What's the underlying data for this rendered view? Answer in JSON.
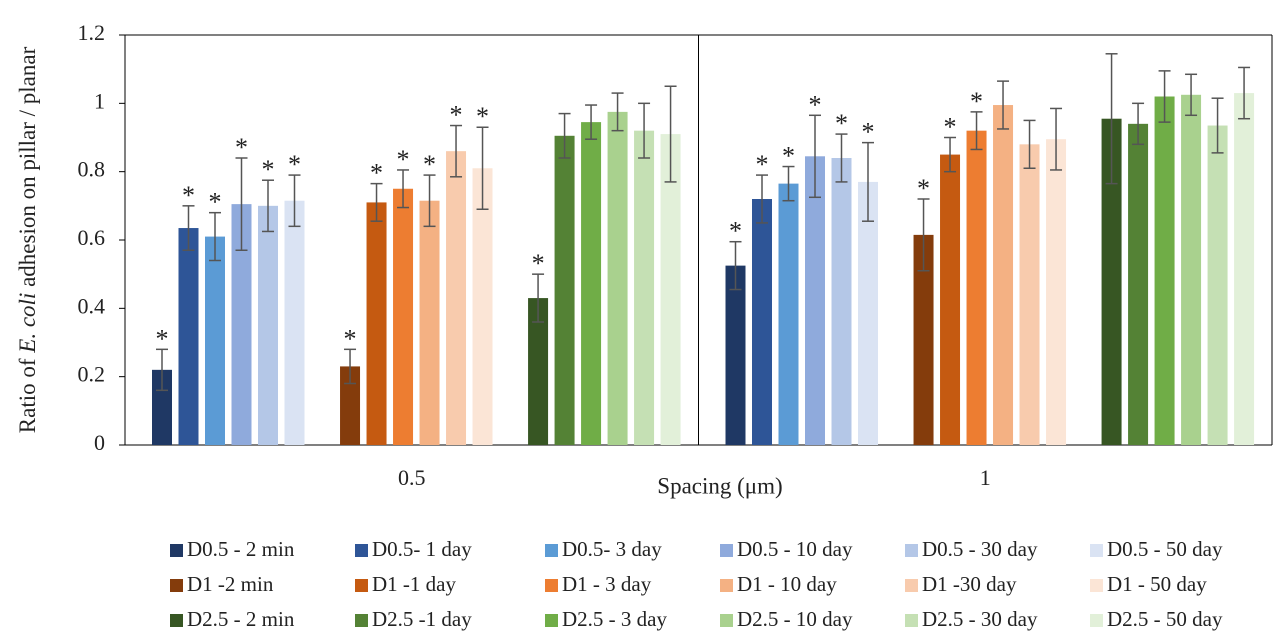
{
  "chart_data": {
    "type": "bar",
    "ylabel": [
      "Ratio of ",
      "E. coli",
      " adhesion on pillar / planar"
    ],
    "xlabel": "Spacing (μm)",
    "categories": [
      "0.5",
      "1"
    ],
    "ylim": [
      0,
      1.2
    ],
    "yticks": [
      0,
      0.2,
      0.4,
      0.6,
      0.8,
      1,
      1.2
    ],
    "significance_marker": "*",
    "series": [
      {
        "name": "D0.5 - 2 min",
        "color": "#1f3864",
        "values": [
          0.22,
          0.525
        ],
        "errors": [
          0.06,
          0.07
        ],
        "significant": [
          true,
          true
        ]
      },
      {
        "name": "D0.5- 1 day",
        "color": "#2e5597",
        "values": [
          0.635,
          0.72
        ],
        "errors": [
          0.065,
          0.07
        ],
        "significant": [
          true,
          true
        ]
      },
      {
        "name": "D0.5- 3 day",
        "color": "#5b9bd5",
        "values": [
          0.61,
          0.765
        ],
        "errors": [
          0.07,
          0.05
        ],
        "significant": [
          true,
          true
        ]
      },
      {
        "name": "D0.5 - 10 day",
        "color": "#8faadc",
        "values": [
          0.705,
          0.845
        ],
        "errors": [
          0.135,
          0.12
        ],
        "significant": [
          true,
          true
        ]
      },
      {
        "name": "D0.5 - 30 day",
        "color": "#b4c7e7",
        "values": [
          0.7,
          0.84
        ],
        "errors": [
          0.075,
          0.07
        ],
        "significant": [
          true,
          true
        ]
      },
      {
        "name": "D0.5 - 50 day",
        "color": "#dae3f3",
        "values": [
          0.715,
          0.77
        ],
        "errors": [
          0.075,
          0.115
        ],
        "significant": [
          true,
          true
        ]
      },
      {
        "name": "D1 -2 min",
        "color": "#843c0c",
        "values": [
          0.23,
          0.615
        ],
        "errors": [
          0.05,
          0.105
        ],
        "significant": [
          true,
          true
        ]
      },
      {
        "name": "D1 -1 day",
        "color": "#c55a11",
        "values": [
          0.71,
          0.85
        ],
        "errors": [
          0.055,
          0.05
        ],
        "significant": [
          true,
          true
        ]
      },
      {
        "name": "D1 - 3 day",
        "color": "#ed7d31",
        "values": [
          0.75,
          0.92
        ],
        "errors": [
          0.055,
          0.055
        ],
        "significant": [
          true,
          true
        ]
      },
      {
        "name": "D1 - 10 day",
        "color": "#f4b183",
        "values": [
          0.715,
          0.995
        ],
        "errors": [
          0.075,
          0.07
        ],
        "significant": [
          true,
          false
        ]
      },
      {
        "name": "D1 -30 day",
        "color": "#f8cbad",
        "values": [
          0.86,
          0.88
        ],
        "errors": [
          0.075,
          0.07
        ],
        "significant": [
          true,
          false
        ]
      },
      {
        "name": "D1 - 50 day",
        "color": "#fbe5d6",
        "values": [
          0.81,
          0.895
        ],
        "errors": [
          0.12,
          0.09
        ],
        "significant": [
          true,
          false
        ]
      },
      {
        "name": "D2.5 - 2 min",
        "color": "#375623",
        "values": [
          0.43,
          0.955
        ],
        "errors": [
          0.07,
          0.19
        ],
        "significant": [
          true,
          false
        ]
      },
      {
        "name": "D2.5 -1 day",
        "color": "#548235",
        "values": [
          0.905,
          0.94
        ],
        "errors": [
          0.065,
          0.06
        ],
        "significant": [
          false,
          false
        ]
      },
      {
        "name": "D2.5 - 3 day",
        "color": "#70ad47",
        "values": [
          0.945,
          1.02
        ],
        "errors": [
          0.05,
          0.075
        ],
        "significant": [
          false,
          false
        ]
      },
      {
        "name": "D2.5 - 10 day",
        "color": "#a9d18e",
        "values": [
          0.975,
          1.025
        ],
        "errors": [
          0.055,
          0.06
        ],
        "significant": [
          false,
          false
        ]
      },
      {
        "name": "D2.5 - 30 day",
        "color": "#c5e0b4",
        "values": [
          0.92,
          0.935
        ],
        "errors": [
          0.08,
          0.08
        ],
        "significant": [
          false,
          false
        ]
      },
      {
        "name": "D2.5 - 50 day",
        "color": "#e2f0d9",
        "values": [
          0.91,
          1.03
        ],
        "errors": [
          0.14,
          0.075
        ],
        "significant": [
          false,
          false
        ]
      }
    ]
  }
}
